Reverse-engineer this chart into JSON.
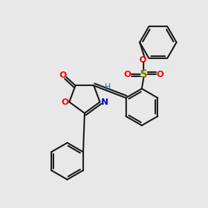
{
  "bg_color": "#e8e8e8",
  "bond_color": "#1a1a1a",
  "o_color": "#ff0000",
  "n_color": "#0000cc",
  "s_color": "#808000",
  "h_color": "#008080",
  "figsize": [
    3.0,
    3.0
  ],
  "dpi": 100,
  "xlim": [
    0,
    10
  ],
  "ylim": [
    0,
    10
  ]
}
